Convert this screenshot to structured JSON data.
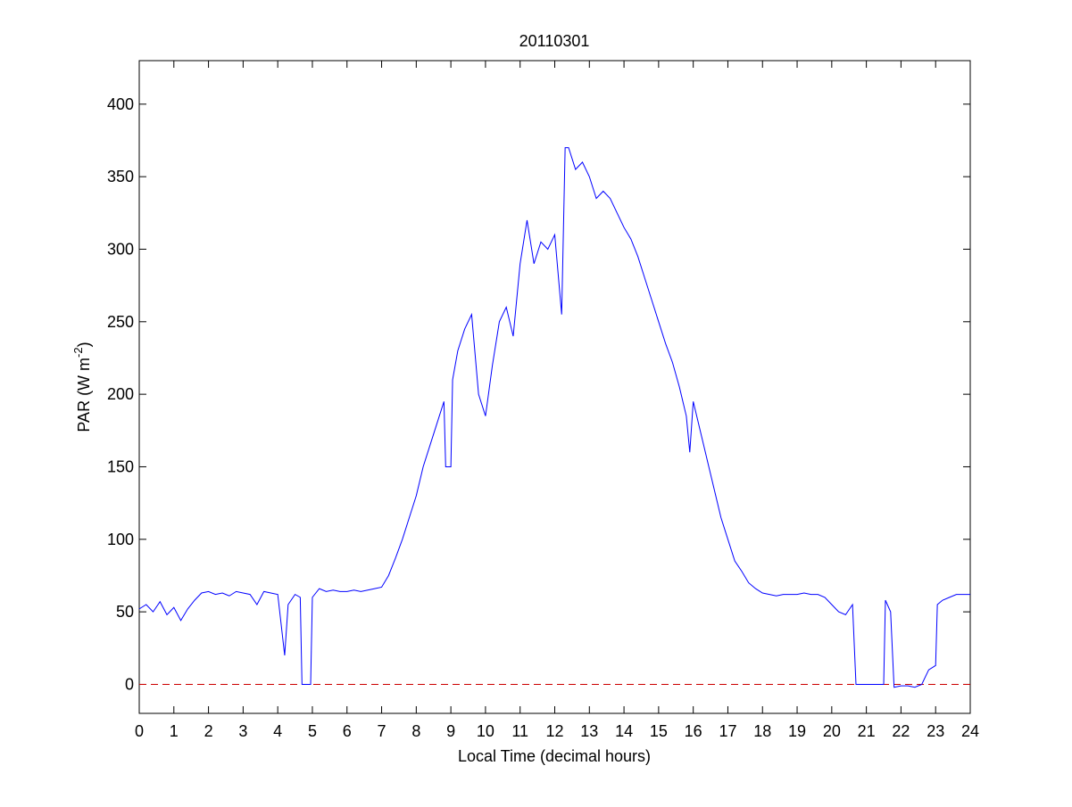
{
  "chart_data": {
    "type": "line",
    "title": "20110301",
    "xlabel": "Local Time (decimal hours)",
    "ylabel": {
      "base": "PAR (W m",
      "superscript": "-2",
      "suffix": ")"
    },
    "x": [
      0,
      0.2,
      0.4,
      0.6,
      0.8,
      1,
      1.2,
      1.4,
      1.6,
      1.8,
      2,
      2.2,
      2.4,
      2.6,
      2.8,
      3,
      3.2,
      3.4,
      3.6,
      3.8,
      4,
      4.2,
      4.3,
      4.5,
      4.65,
      4.7,
      4.95,
      5,
      5.2,
      5.4,
      5.6,
      5.8,
      6,
      6.2,
      6.4,
      6.6,
      6.8,
      7,
      7.2,
      7.4,
      7.6,
      7.8,
      8,
      8.2,
      8.4,
      8.6,
      8.8,
      8.85,
      9,
      9.05,
      9.2,
      9.4,
      9.6,
      9.8,
      10,
      10.2,
      10.4,
      10.6,
      10.8,
      11,
      11.2,
      11.4,
      11.6,
      11.8,
      12,
      12.2,
      12.3,
      12.4,
      12.6,
      12.8,
      13,
      13.2,
      13.4,
      13.6,
      13.8,
      14,
      14.2,
      14.4,
      14.6,
      14.8,
      15,
      15.2,
      15.4,
      15.6,
      15.8,
      15.9,
      16,
      16.2,
      16.4,
      16.6,
      16.8,
      17,
      17.2,
      17.4,
      17.6,
      17.8,
      18,
      18.2,
      18.4,
      18.6,
      18.8,
      19,
      19.2,
      19.4,
      19.6,
      19.8,
      20,
      20.2,
      20.4,
      20.6,
      20.7,
      21.5,
      21.55,
      21.7,
      21.8,
      22,
      22.2,
      22.4,
      22.6,
      22.8,
      23,
      23.05,
      23.2,
      23.4,
      23.6,
      23.8,
      24
    ],
    "series": [
      {
        "name": "PAR",
        "color": "#0000ff",
        "values": [
          52,
          55,
          50,
          57,
          48,
          53,
          44,
          52,
          58,
          63,
          64,
          62,
          63,
          61,
          64,
          63,
          62,
          55,
          64,
          63,
          62,
          20,
          55,
          62,
          60,
          0,
          0,
          60,
          66,
          64,
          65,
          64,
          64,
          65,
          64,
          65,
          66,
          67,
          75,
          87,
          100,
          115,
          130,
          150,
          165,
          180,
          195,
          150,
          150,
          210,
          230,
          245,
          255,
          200,
          185,
          220,
          250,
          260,
          240,
          290,
          320,
          290,
          305,
          300,
          310,
          255,
          370,
          370,
          355,
          360,
          350,
          335,
          340,
          335,
          325,
          315,
          307,
          295,
          280,
          265,
          250,
          235,
          222,
          205,
          185,
          160,
          195,
          175,
          155,
          135,
          115,
          100,
          85,
          78,
          70,
          66,
          63,
          62,
          61,
          62,
          62,
          62,
          63,
          62,
          62,
          60,
          55,
          50,
          48,
          55,
          0,
          0,
          58,
          50,
          -2,
          -1,
          -1,
          -2,
          0,
          10,
          13,
          55,
          58,
          60,
          62,
          62,
          62
        ]
      }
    ],
    "reference_line": {
      "value": 0,
      "color": "#cc0000",
      "style": "dashed"
    },
    "xlim": [
      0,
      24
    ],
    "xticks": [
      0,
      1,
      2,
      3,
      4,
      5,
      6,
      7,
      8,
      9,
      10,
      11,
      12,
      13,
      14,
      15,
      16,
      17,
      18,
      19,
      20,
      21,
      22,
      23,
      24
    ],
    "ylim": [
      -20,
      430
    ],
    "yticks": [
      0,
      50,
      100,
      150,
      200,
      250,
      300,
      350,
      400
    ],
    "grid": false
  }
}
